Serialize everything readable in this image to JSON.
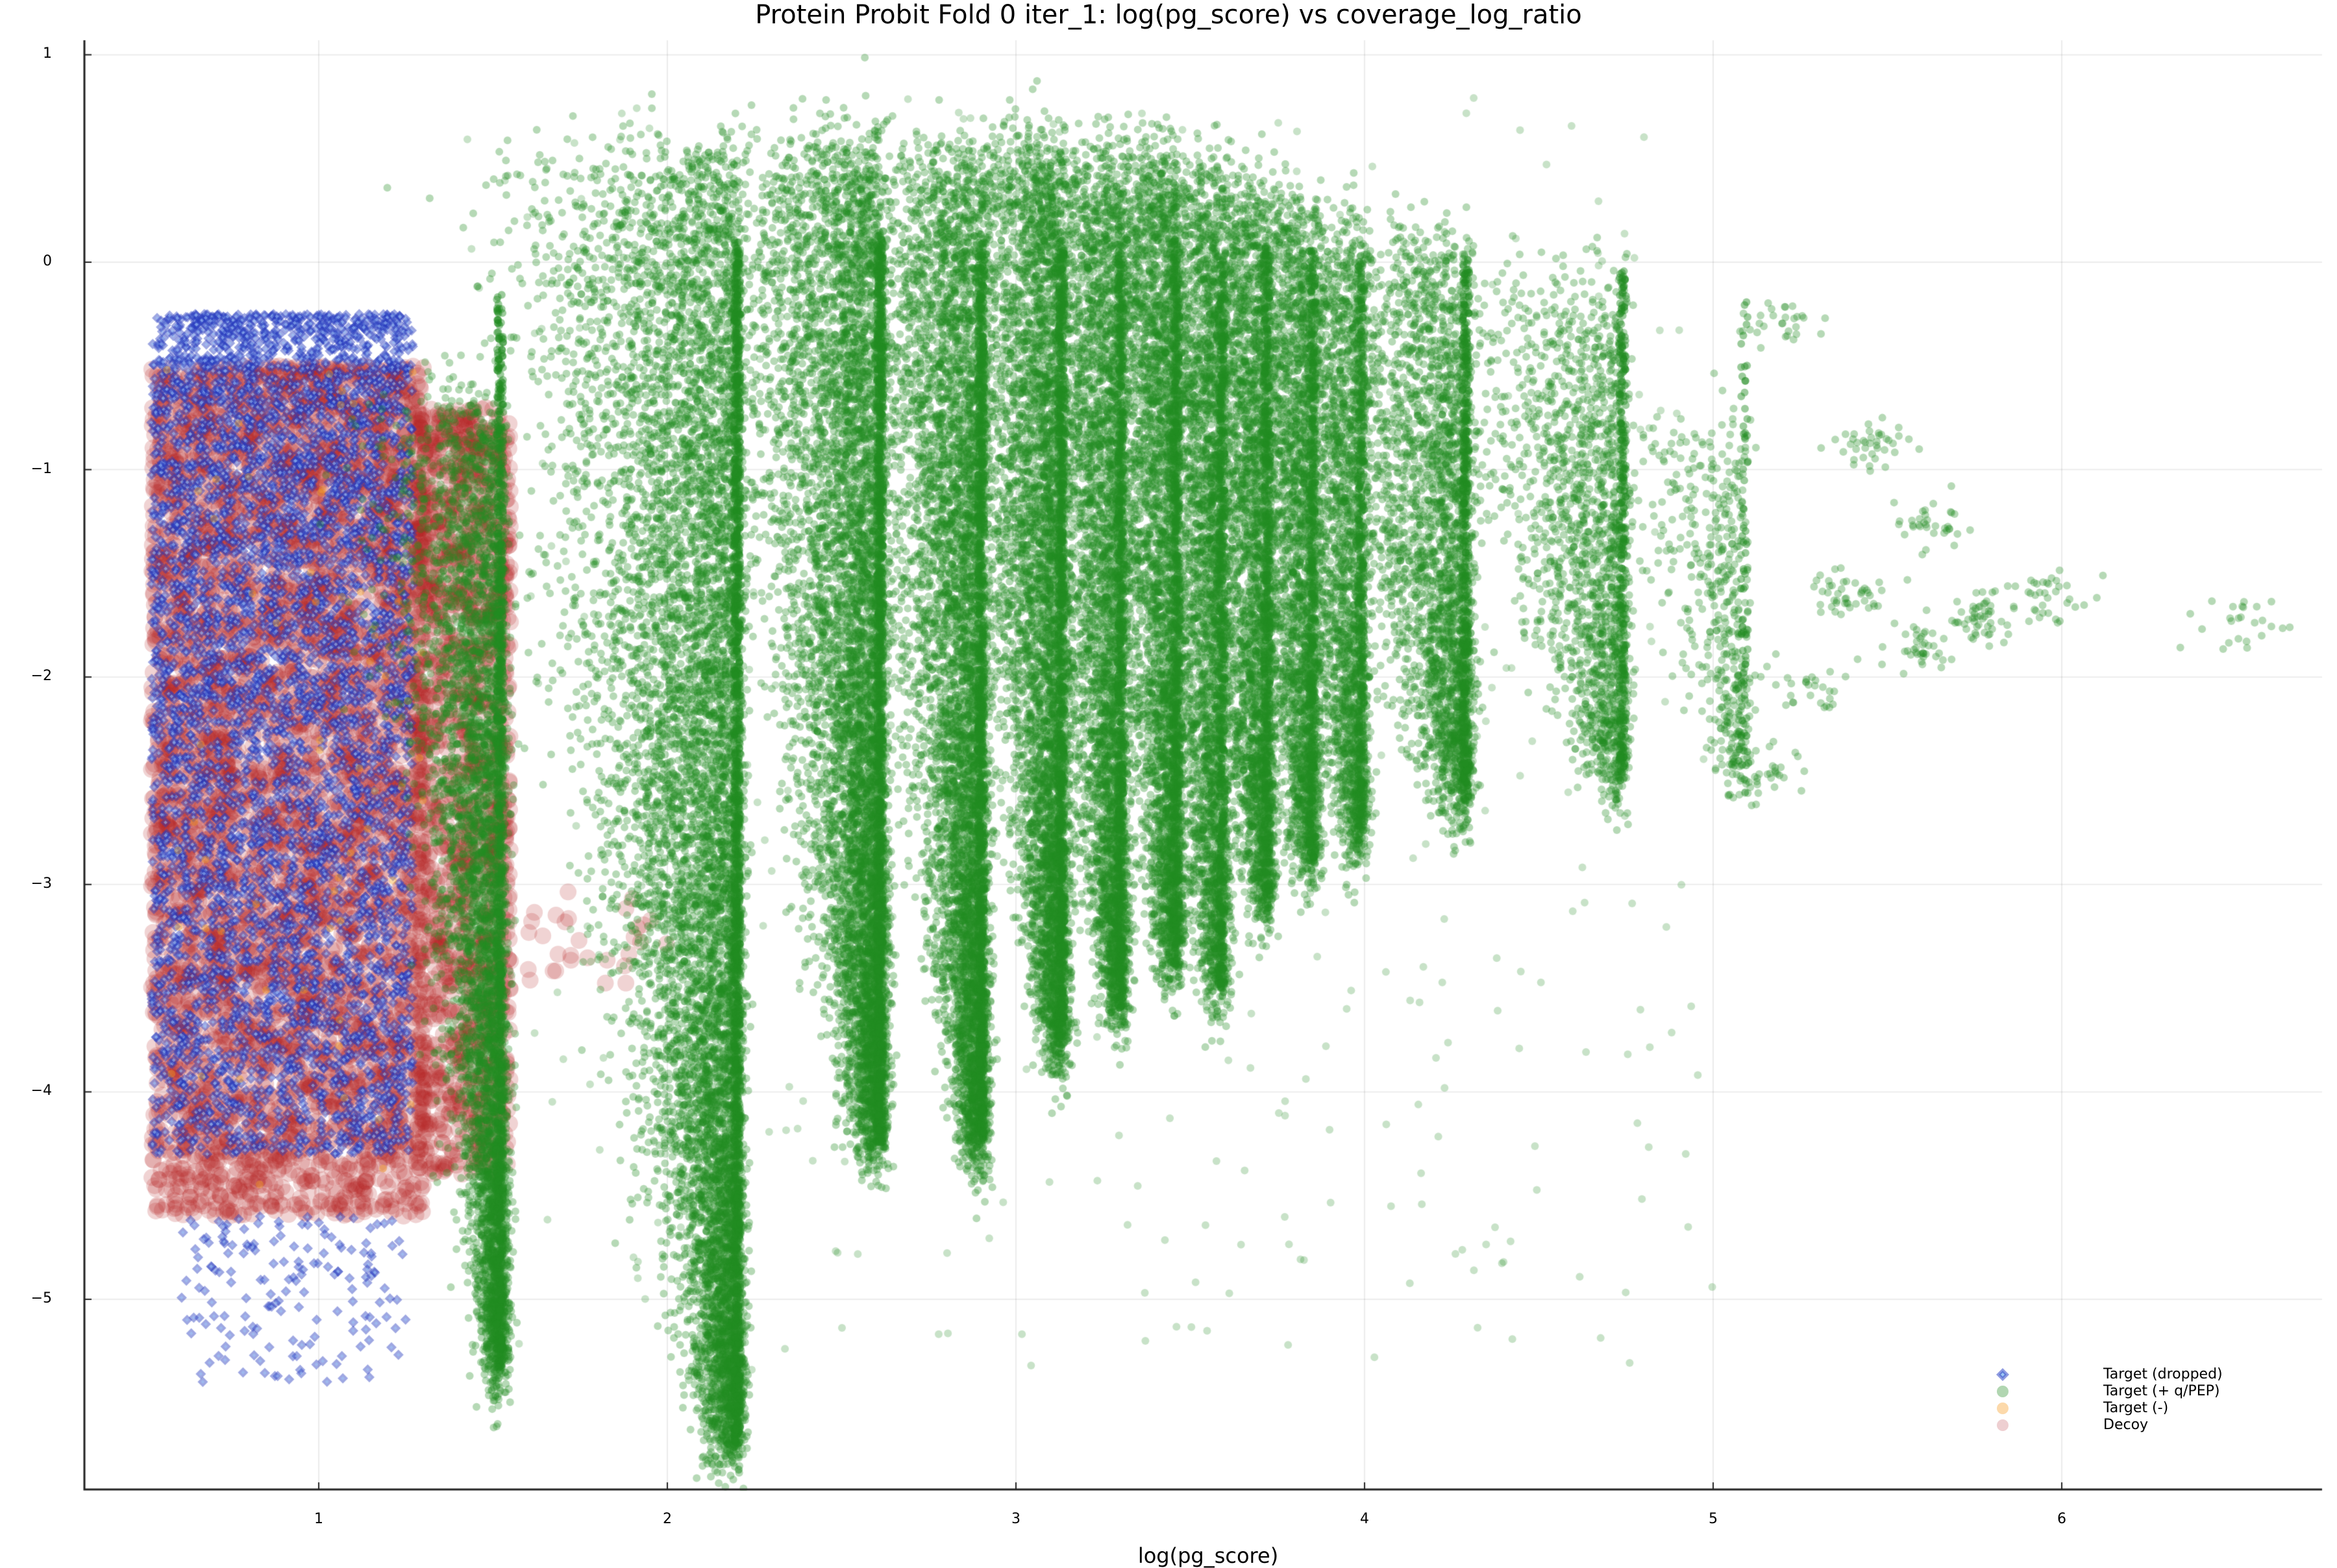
{
  "chart_data": {
    "type": "scatter",
    "title": "Protein Probit Fold 0 iter_1: log(pg_score) vs coverage_log_ratio",
    "xlabel": "log(pg_score)",
    "ylabel": "",
    "xlim": [
      0.33,
      6.78
    ],
    "ylim": [
      -5.96,
      1.08
    ],
    "xticks": [
      1,
      2,
      3,
      4,
      5,
      6
    ],
    "yticks": [
      1,
      0,
      -1,
      -2,
      -3,
      -4,
      -5
    ],
    "ytick_labels": [
      "1",
      "0",
      "−1",
      "−2",
      "−3",
      "−4",
      "−5"
    ],
    "grid": true,
    "legend_position": "bottom-right",
    "series": [
      {
        "name": "Target (dropped)",
        "marker": "diamond",
        "color": "#1f3bb3",
        "alpha": 0.5,
        "approx_region": {
          "x": [
            0.5,
            1.28
          ],
          "y": [
            -5.4,
            -0.1
          ]
        },
        "clusters": [
          {
            "x": [
              0.52,
              1.27
            ],
            "y_top": -0.25,
            "y_bot": -4.3,
            "n": 5200
          },
          {
            "x": [
              0.6,
              1.25
            ],
            "y_top": -4.6,
            "y_bot": -5.4,
            "n": 170
          }
        ]
      },
      {
        "name": "Target (+ q/PEP)",
        "marker": "circle",
        "color": "#228b22",
        "alpha": 0.35,
        "approx_region": {
          "x": [
            1.28,
            6.6
          ],
          "y": [
            -5.7,
            0.87
          ]
        },
        "stripes": [
          {
            "x": 1.53,
            "width": 0.27,
            "y_top": -0.7,
            "y_bot": -5.35,
            "n": 5000
          },
          {
            "x": 2.21,
            "width": 0.55,
            "y_top": 0.5,
            "y_bot": -5.7,
            "n": 9000
          },
          {
            "x": 2.62,
            "width": 0.42,
            "y_top": 0.6,
            "y_bot": -4.25,
            "n": 7000
          },
          {
            "x": 2.91,
            "width": 0.35,
            "y_top": 0.5,
            "y_bot": -4.25,
            "n": 6000
          },
          {
            "x": 3.14,
            "width": 0.32,
            "y_top": 0.6,
            "y_bot": -3.8,
            "n": 5000
          },
          {
            "x": 3.31,
            "width": 0.3,
            "y_top": 0.5,
            "y_bot": -3.6,
            "n": 4000
          },
          {
            "x": 3.47,
            "width": 0.3,
            "y_top": 0.55,
            "y_bot": -3.4,
            "n": 3600
          },
          {
            "x": 3.6,
            "width": 0.3,
            "y_top": 0.45,
            "y_bot": -3.5,
            "n": 3200
          },
          {
            "x": 3.73,
            "width": 0.3,
            "y_top": 0.4,
            "y_bot": -3.1,
            "n": 3000
          },
          {
            "x": 3.86,
            "width": 0.3,
            "y_top": 0.3,
            "y_bot": -2.9,
            "n": 2600
          },
          {
            "x": 4.0,
            "width": 0.35,
            "y_top": 0.2,
            "y_bot": -2.8,
            "n": 2400
          },
          {
            "x": 4.3,
            "width": 0.5,
            "y_top": 0.1,
            "y_bot": -2.6,
            "n": 3000
          },
          {
            "x": 4.75,
            "width": 0.5,
            "y_top": -0.1,
            "y_bot": -2.5,
            "n": 1800
          },
          {
            "x": 5.1,
            "width": 0.35,
            "y_top": -0.8,
            "y_bot": -2.5,
            "n": 500
          }
        ],
        "islands": [
          {
            "x": 5.2,
            "y": -0.3,
            "n": 30
          },
          {
            "x": 5.45,
            "y": -0.9,
            "n": 40
          },
          {
            "x": 5.4,
            "y": -1.6,
            "n": 45
          },
          {
            "x": 5.62,
            "y": -1.25,
            "n": 35
          },
          {
            "x": 5.6,
            "y": -1.85,
            "n": 40
          },
          {
            "x": 5.78,
            "y": -1.72,
            "n": 55
          },
          {
            "x": 5.97,
            "y": -1.6,
            "n": 35
          },
          {
            "x": 5.25,
            "y": -2.05,
            "n": 30
          },
          {
            "x": 5.15,
            "y": -2.45,
            "n": 30
          },
          {
            "x": 6.52,
            "y": -1.75,
            "n": 25
          }
        ]
      },
      {
        "name": "Target (-)",
        "marker": "circle",
        "color": "#f5a623",
        "alpha": 0.35,
        "approx_region": {
          "x": [
            0.5,
            1.3
          ],
          "y": [
            -4.6,
            -0.5
          ]
        },
        "count_hint": "sparse"
      },
      {
        "name": "Decoy",
        "marker": "circle",
        "color": "#b22222",
        "alpha": 0.22,
        "approx_region": {
          "x": [
            0.5,
            1.55
          ],
          "y": [
            -4.75,
            -0.3
          ]
        },
        "clusters": [
          {
            "x": [
              0.52,
              1.3
            ],
            "y_top": -0.5,
            "y_bot": -4.6,
            "n": 5200
          },
          {
            "x": [
              1.28,
              1.55
            ],
            "y_top": -0.7,
            "y_bot": -4.4,
            "n": 1500
          },
          {
            "x": [
              1.6,
              2.0
            ],
            "y_top": -3.0,
            "y_bot": -3.5,
            "n": 30
          }
        ]
      }
    ]
  },
  "legend": {
    "items": [
      {
        "label": "Target (dropped)",
        "marker": "diamond",
        "color": "#6a7fd8"
      },
      {
        "label": "Target (+ q/PEP)",
        "marker": "circle",
        "color": "#b1d6b1"
      },
      {
        "label": "Target (-)",
        "marker": "circle",
        "color": "#fcd9aa"
      },
      {
        "label": "Decoy",
        "marker": "circle",
        "color": "#eecfd1"
      }
    ]
  },
  "axes": {
    "x_tick_labels": [
      "1",
      "2",
      "3",
      "4",
      "5",
      "6"
    ],
    "y_tick_labels": [
      "1",
      "0",
      "−1",
      "−2",
      "−3",
      "−4",
      "−5"
    ]
  }
}
